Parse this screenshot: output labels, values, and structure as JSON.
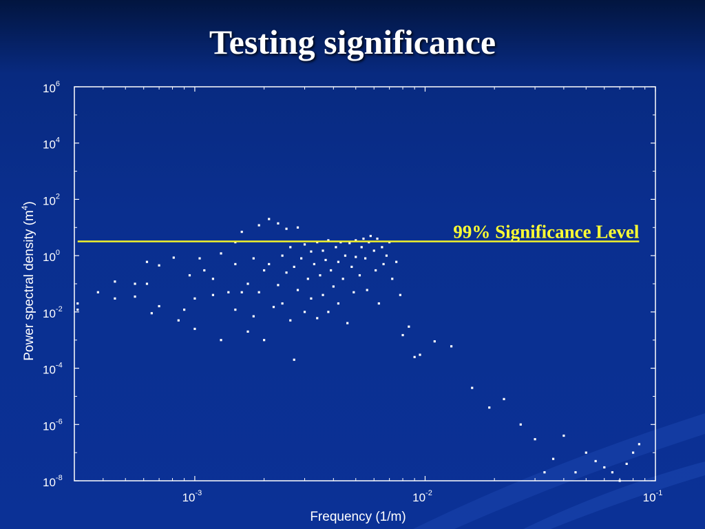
{
  "slide": {
    "title": "Testing significance"
  },
  "chart_data": {
    "type": "scatter",
    "xscale": "log",
    "yscale": "log",
    "xlim": [
      0.0003,
      0.1
    ],
    "ylim": [
      1e-08,
      1000000.0
    ],
    "xlabel": "Frequency (1/m)",
    "ylabel": "Power spectral density (m^4)",
    "xticks": [
      {
        "base": "10",
        "exp": "-3",
        "value": 0.001
      },
      {
        "base": "10",
        "exp": "-2",
        "value": 0.01
      },
      {
        "base": "10",
        "exp": "-1",
        "value": 0.1
      }
    ],
    "yticks": [
      {
        "base": "10",
        "exp": "-8",
        "value": 1e-08
      },
      {
        "base": "10",
        "exp": "-6",
        "value": 1e-06
      },
      {
        "base": "10",
        "exp": "-4",
        "value": 0.0001
      },
      {
        "base": "10",
        "exp": "-2",
        "value": 0.01
      },
      {
        "base": "10",
        "exp": "0",
        "value": 1
      },
      {
        "base": "10",
        "exp": "2",
        "value": 100
      },
      {
        "base": "10",
        "exp": "4",
        "value": 10000
      },
      {
        "base": "10",
        "exp": "6",
        "value": 1000000
      }
    ],
    "ylabel_exp": "4",
    "significance": {
      "label": "99% Significance Level",
      "y": 3.2,
      "x_range": [
        0.00031,
        0.085
      ],
      "color": "#f4f42a"
    },
    "series": [
      {
        "color": "#ffffff",
        "points": [
          [
            0.00031,
            0.012
          ],
          [
            0.00031,
            0.02
          ],
          [
            0.00038,
            0.05
          ],
          [
            0.00045,
            0.03
          ],
          [
            0.00045,
            0.12
          ],
          [
            0.00055,
            0.1
          ],
          [
            0.00055,
            0.035
          ],
          [
            0.00062,
            0.6
          ],
          [
            0.00062,
            0.1
          ],
          [
            0.00065,
            0.009
          ],
          [
            0.0007,
            0.016
          ],
          [
            0.0007,
            0.45
          ],
          [
            0.00081,
            0.85
          ],
          [
            0.00085,
            0.005
          ],
          [
            0.0009,
            0.012
          ],
          [
            0.00095,
            0.2
          ],
          [
            0.001,
            0.03
          ],
          [
            0.001,
            0.0025
          ],
          [
            0.00105,
            0.8
          ],
          [
            0.0011,
            0.3
          ],
          [
            0.0012,
            0.15
          ],
          [
            0.0012,
            0.04
          ],
          [
            0.0013,
            0.001
          ],
          [
            0.0013,
            1.2
          ],
          [
            0.0014,
            0.05
          ],
          [
            0.0015,
            3
          ],
          [
            0.0015,
            0.5
          ],
          [
            0.0015,
            0.012
          ],
          [
            0.0016,
            0.05
          ],
          [
            0.0016,
            7
          ],
          [
            0.0017,
            0.002
          ],
          [
            0.0017,
            0.1
          ],
          [
            0.0018,
            0.8
          ],
          [
            0.0018,
            0.007
          ],
          [
            0.0019,
            12
          ],
          [
            0.0019,
            0.05
          ],
          [
            0.002,
            0.3
          ],
          [
            0.002,
            0.001
          ],
          [
            0.0021,
            20
          ],
          [
            0.0021,
            0.5
          ],
          [
            0.0022,
            0.015
          ],
          [
            0.0023,
            14
          ],
          [
            0.0023,
            0.09
          ],
          [
            0.0024,
            1
          ],
          [
            0.0024,
            0.02
          ],
          [
            0.0025,
            9
          ],
          [
            0.0025,
            0.25
          ],
          [
            0.0026,
            0.005
          ],
          [
            0.0026,
            2
          ],
          [
            0.0027,
            0.4
          ],
          [
            0.0027,
            0.0002
          ],
          [
            0.0028,
            10
          ],
          [
            0.0028,
            0.06
          ],
          [
            0.0029,
            0.8
          ],
          [
            0.003,
            0.01
          ],
          [
            0.003,
            2.5
          ],
          [
            0.0031,
            0.15
          ],
          [
            0.0032,
            1.4
          ],
          [
            0.0032,
            0.03
          ],
          [
            0.0033,
            0.5
          ],
          [
            0.0034,
            0.006
          ],
          [
            0.0034,
            3
          ],
          [
            0.0035,
            0.2
          ],
          [
            0.0036,
            0.04
          ],
          [
            0.0036,
            1.5
          ],
          [
            0.0037,
            0.7
          ],
          [
            0.0038,
            0.01
          ],
          [
            0.0038,
            3.5
          ],
          [
            0.0039,
            0.3
          ],
          [
            0.004,
            0.08
          ],
          [
            0.0041,
            2
          ],
          [
            0.0042,
            0.02
          ],
          [
            0.0042,
            0.6
          ],
          [
            0.0043,
            3
          ],
          [
            0.0044,
            0.15
          ],
          [
            0.0045,
            1
          ],
          [
            0.0046,
            0.004
          ],
          [
            0.0047,
            2.8
          ],
          [
            0.0048,
            0.4
          ],
          [
            0.0049,
            0.05
          ],
          [
            0.005,
            3.5
          ],
          [
            0.005,
            0.9
          ],
          [
            0.0052,
            0.2
          ],
          [
            0.0053,
            2
          ],
          [
            0.0054,
            4
          ],
          [
            0.0055,
            0.8
          ],
          [
            0.0056,
            0.06
          ],
          [
            0.0057,
            3
          ],
          [
            0.0058,
            5
          ],
          [
            0.006,
            1.5
          ],
          [
            0.0061,
            0.3
          ],
          [
            0.0062,
            4
          ],
          [
            0.0063,
            0.02
          ],
          [
            0.0065,
            2
          ],
          [
            0.0066,
            0.5
          ],
          [
            0.0068,
            1
          ],
          [
            0.007,
            3
          ],
          [
            0.0072,
            0.15
          ],
          [
            0.0075,
            0.6
          ],
          [
            0.0078,
            0.04
          ],
          [
            0.008,
            0.0015
          ],
          [
            0.0085,
            0.003
          ],
          [
            0.009,
            0.00025
          ],
          [
            0.0095,
            0.0003
          ],
          [
            0.011,
            0.0009
          ],
          [
            0.013,
            0.0006
          ],
          [
            0.016,
            2e-05
          ],
          [
            0.019,
            4e-06
          ],
          [
            0.022,
            8e-06
          ],
          [
            0.026,
            1e-06
          ],
          [
            0.03,
            3e-07
          ],
          [
            0.033,
            2e-08
          ],
          [
            0.036,
            6e-08
          ],
          [
            0.04,
            4e-07
          ],
          [
            0.045,
            2e-08
          ],
          [
            0.05,
            1e-07
          ],
          [
            0.055,
            5e-08
          ],
          [
            0.06,
            3e-08
          ],
          [
            0.065,
            2e-08
          ],
          [
            0.07,
            1e-08
          ],
          [
            0.075,
            4e-08
          ],
          [
            0.08,
            1e-07
          ],
          [
            0.085,
            2e-07
          ]
        ]
      }
    ]
  }
}
